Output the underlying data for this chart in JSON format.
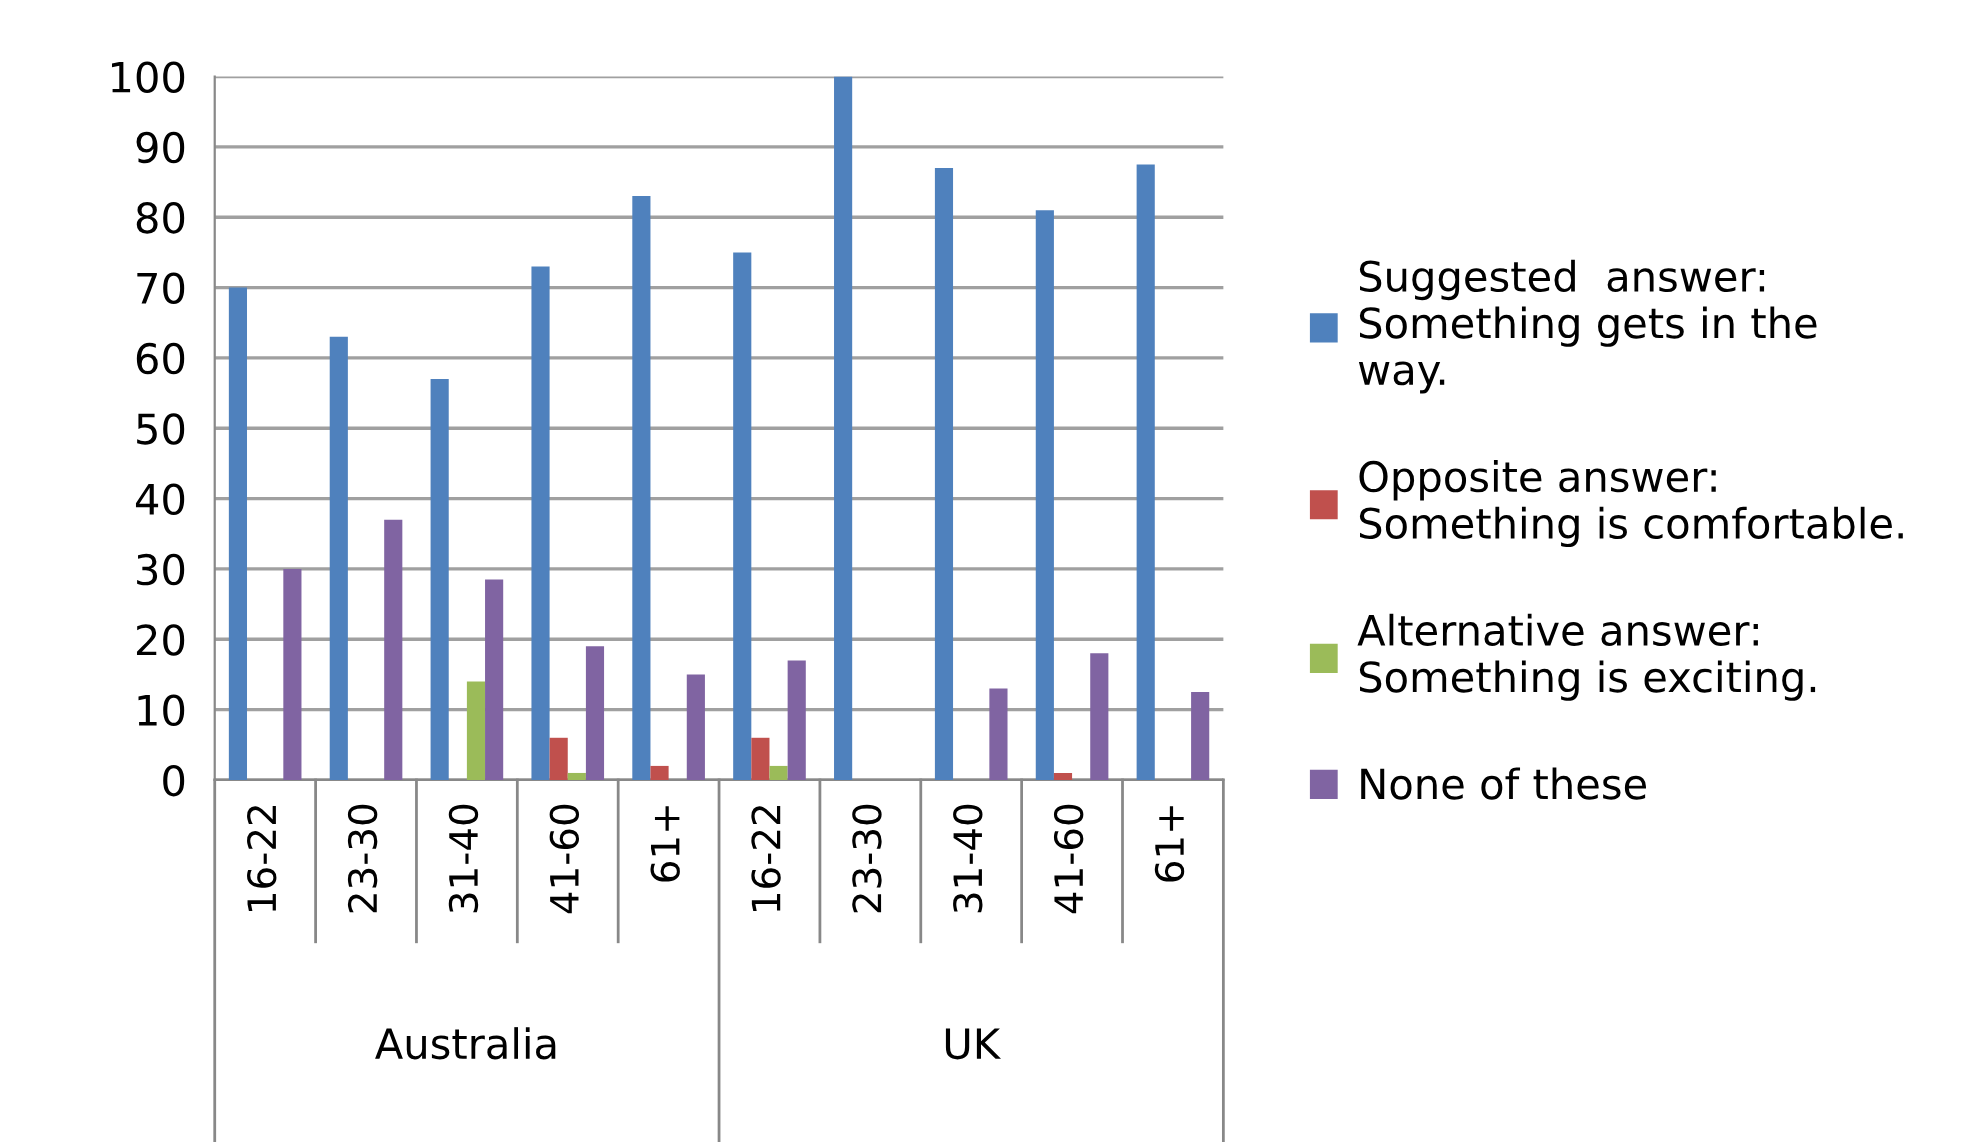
{
  "chart_data": {
    "type": "bar",
    "categories": [
      "16-22",
      "23-30",
      "31-40",
      "41-60",
      "61+",
      "16-22",
      "23-30",
      "31-40",
      "41-60",
      "61+"
    ],
    "annotations": [
      "Australia",
      "UK"
    ],
    "series": [
      {
        "name": "Suggested  answer:\nSomething gets in the\nway.",
        "color": "#4f81bd",
        "values": [
          70,
          63,
          57,
          73,
          83,
          75,
          100,
          87,
          81,
          87.5
        ]
      },
      {
        "name": "Opposite answer:\nSomething is comfortable.",
        "color": "#c0504d",
        "values": [
          null,
          null,
          null,
          6,
          2,
          6,
          null,
          null,
          1,
          null
        ]
      },
      {
        "name": "Alternative answer:\nSomething is exciting.",
        "color": "#9bbb59",
        "values": [
          null,
          null,
          14,
          1,
          null,
          2,
          null,
          null,
          null,
          null
        ]
      },
      {
        "name": "None of these",
        "color": "#8064a2",
        "values": [
          30,
          37,
          28.5,
          19,
          15,
          17,
          null,
          13,
          18,
          12.5
        ]
      }
    ],
    "ylim": [
      0,
      100
    ],
    "yticks": [
      0,
      10,
      20,
      30,
      40,
      50,
      60,
      70,
      80,
      90,
      100
    ],
    "grid": "y",
    "legend": "right"
  }
}
